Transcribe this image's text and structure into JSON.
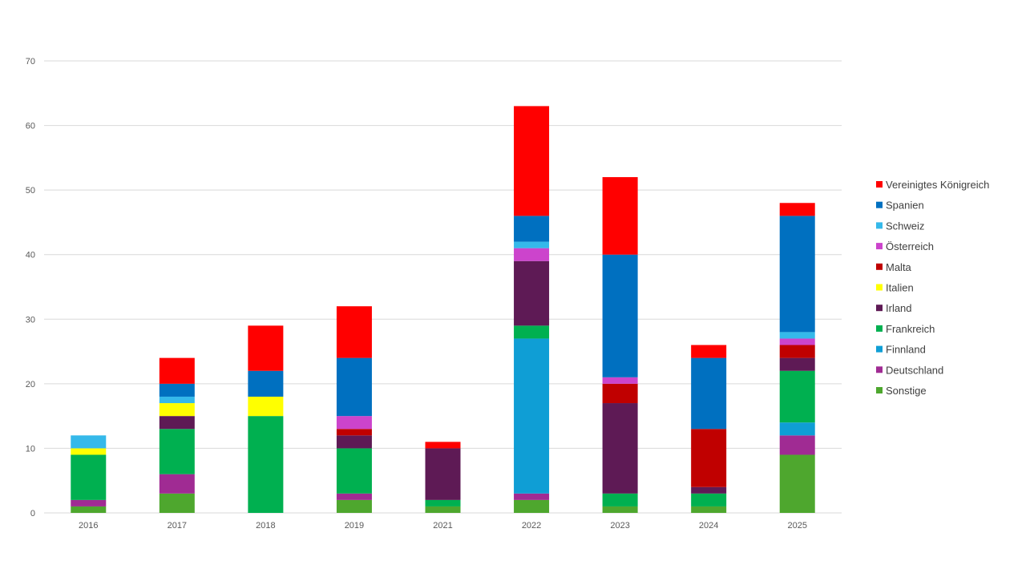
{
  "chart_data": {
    "type": "bar",
    "stacked": true,
    "title": "",
    "xlabel": "",
    "ylabel": "",
    "ylim": [
      0,
      70
    ],
    "yticks": [
      0,
      10,
      20,
      30,
      40,
      50,
      60,
      70
    ],
    "grid": true,
    "legend_position": "right",
    "categories": [
      "2016",
      "2017",
      "2018",
      "2019",
      "2021",
      "2022",
      "2023",
      "2024",
      "2025"
    ],
    "series": [
      {
        "name": "Sonstige",
        "color": "#4EA72E",
        "values": [
          1,
          3,
          0,
          2,
          1,
          2,
          1,
          1,
          9
        ]
      },
      {
        "name": "Deutschland",
        "color": "#A02B93",
        "values": [
          1,
          3,
          0,
          1,
          0,
          1,
          0,
          0,
          3
        ]
      },
      {
        "name": "Finnland",
        "color": "#0F9ED5",
        "values": [
          0,
          0,
          0,
          0,
          0,
          24,
          0,
          0,
          2
        ]
      },
      {
        "name": "Frankreich",
        "color": "#00B050",
        "values": [
          7,
          7,
          15,
          7,
          1,
          2,
          2,
          2,
          8
        ]
      },
      {
        "name": "Irland",
        "color": "#5E1A55",
        "values": [
          0,
          2,
          0,
          2,
          8,
          10,
          14,
          1,
          2
        ]
      },
      {
        "name": "Italien",
        "color": "#FFFF00",
        "values": [
          1,
          2,
          3,
          0,
          0,
          0,
          0,
          0,
          0
        ]
      },
      {
        "name": "Malta",
        "color": "#C00000",
        "values": [
          0,
          0,
          0,
          1,
          0,
          0,
          3,
          9,
          2
        ]
      },
      {
        "name": "Österreich",
        "color": "#CC44CC",
        "values": [
          0,
          0,
          0,
          2,
          0,
          2,
          1,
          0,
          1
        ]
      },
      {
        "name": "Schweiz",
        "color": "#35B9EA",
        "values": [
          2,
          1,
          0,
          0,
          0,
          1,
          0,
          0,
          1
        ]
      },
      {
        "name": "Spanien",
        "color": "#0070C0",
        "values": [
          0,
          2,
          4,
          9,
          0,
          4,
          19,
          11,
          18
        ]
      },
      {
        "name": "Vereinigtes Königreich",
        "color": "#FF0000",
        "values": [
          0,
          4,
          7,
          8,
          1,
          17,
          12,
          2,
          2
        ]
      }
    ]
  }
}
